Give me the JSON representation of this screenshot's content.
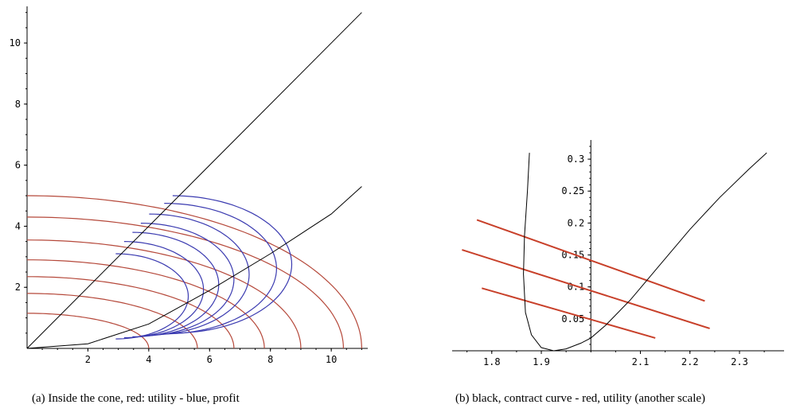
{
  "colors": {
    "utility": "#b5483a",
    "profit": "#3a3ab0",
    "contract": "#000000",
    "utility_b": "#c8402a"
  },
  "chart_data": [
    {
      "id": "a",
      "type": "line",
      "caption": "(a)  Inside the cone, red: utility - blue, profit",
      "xlim": [
        0,
        11.2
      ],
      "ylim": [
        0,
        11.2
      ],
      "x_ticks": [
        2,
        4,
        6,
        8,
        10
      ],
      "x_tick_labels": [
        "2",
        "4",
        "6",
        "8",
        "10"
      ],
      "y_ticks": [
        2,
        4,
        6,
        8,
        10
      ],
      "y_tick_labels": [
        "2",
        "4",
        "6",
        "8",
        "10"
      ],
      "rays": [
        {
          "name": "cone-upper",
          "points": [
            [
              0,
              0
            ],
            [
              11,
              11
            ]
          ]
        },
        {
          "name": "cone-lower",
          "points": [
            [
              0,
              0
            ],
            [
              2,
              0.15
            ],
            [
              4,
              0.8
            ],
            [
              6,
              1.9
            ],
            [
              8,
              3.1
            ],
            [
              10,
              4.4
            ],
            [
              11,
              5.3
            ]
          ]
        }
      ],
      "utility_levels": [
        {
          "xc": 0,
          "yc": 0,
          "rx": 4.0,
          "ry": 1.15
        },
        {
          "xc": 0,
          "yc": 0,
          "rx": 5.6,
          "ry": 1.8
        },
        {
          "xc": 0,
          "yc": 0,
          "rx": 6.8,
          "ry": 2.35
        },
        {
          "xc": 0,
          "yc": 0,
          "rx": 7.8,
          "ry": 2.9
        },
        {
          "xc": 0,
          "yc": 0,
          "rx": 9.0,
          "ry": 3.55
        },
        {
          "xc": 0,
          "yc": 0,
          "rx": 10.4,
          "ry": 4.3
        },
        {
          "xc": 0,
          "yc": 0,
          "rx": 11.0,
          "ry": 5.0
        }
      ],
      "profit_levels": [
        {
          "xc": 0,
          "yc": 0,
          "rx": 5.3,
          "ry": 3.1
        },
        {
          "xc": 0,
          "yc": 0,
          "rx": 5.8,
          "ry": 3.5
        },
        {
          "xc": 0,
          "yc": 0,
          "rx": 6.3,
          "ry": 3.8
        },
        {
          "xc": 0,
          "yc": 0,
          "rx": 6.8,
          "ry": 4.1
        },
        {
          "xc": 0,
          "yc": 0,
          "rx": 7.3,
          "ry": 4.4
        },
        {
          "xc": 0,
          "yc": 0,
          "rx": 8.2,
          "ry": 4.75
        },
        {
          "xc": 0,
          "yc": 0,
          "rx": 8.7,
          "ry": 5.0
        }
      ]
    },
    {
      "id": "b",
      "type": "line",
      "caption": "(b)  black, contract curve - red, utility (another scale)",
      "xlim": [
        1.72,
        2.39
      ],
      "ylim": [
        0,
        0.33
      ],
      "x_ticks": [
        1.8,
        1.9,
        2.1,
        2.2,
        2.3
      ],
      "x_tick_labels": [
        "1.8",
        "1.9",
        "2.1",
        "2.2",
        "2.3"
      ],
      "y_ticks": [
        0.05,
        0.1,
        0.15,
        0.2,
        0.25,
        0.3
      ],
      "y_tick_labels": [
        "0.05",
        "0.1",
        "0.15",
        "0.2",
        "0.25",
        "0.3"
      ],
      "y_axis_at_x": 2.0,
      "contract_curve": [
        [
          1.876,
          0.31
        ],
        [
          1.872,
          0.25
        ],
        [
          1.866,
          0.18
        ],
        [
          1.864,
          0.12
        ],
        [
          1.868,
          0.06
        ],
        [
          1.88,
          0.025
        ],
        [
          1.9,
          0.005
        ],
        [
          1.925,
          0.0
        ],
        [
          1.95,
          0.003
        ],
        [
          1.98,
          0.012
        ],
        [
          2.0,
          0.02
        ],
        [
          2.03,
          0.04
        ],
        [
          2.08,
          0.08
        ],
        [
          2.14,
          0.135
        ],
        [
          2.2,
          0.19
        ],
        [
          2.26,
          0.24
        ],
        [
          2.32,
          0.285
        ],
        [
          2.355,
          0.31
        ]
      ],
      "utility_lines": [
        {
          "points": [
            [
              1.77,
              0.205
            ],
            [
              2.23,
              0.078
            ]
          ]
        },
        {
          "points": [
            [
              1.74,
              0.158
            ],
            [
              2.24,
              0.035
            ]
          ]
        },
        {
          "points": [
            [
              1.78,
              0.098
            ],
            [
              2.13,
              0.02
            ]
          ]
        }
      ]
    }
  ]
}
